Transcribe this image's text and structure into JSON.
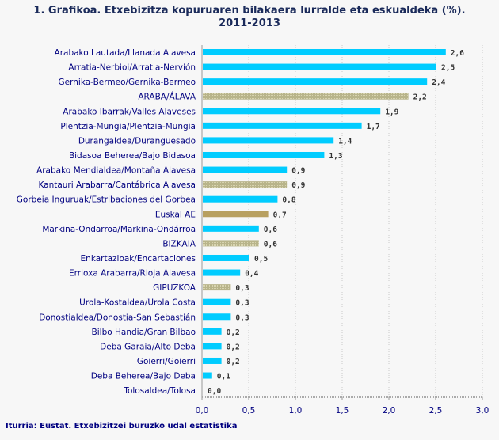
{
  "chart_data": {
    "type": "bar",
    "orientation": "horizontal",
    "title": "1. Grafikoa. Etxebizitza kopuruaren bilakaera lurralde eta eskualdeka (%).",
    "subtitle": "2011-2013",
    "categories": [
      "Arabako Lautada/Llanada Alavesa",
      "Arratia-Nerbioi/Arratia-Nervión",
      "Gernika-Bermeo/Gernika-Bermeo",
      "ARABA/ÁLAVA",
      "Arabako Ibarrak/Valles Alaveses",
      "Plentzia-Mungia/Plentzia-Mungia",
      "Durangaldea/Duranguesado",
      "Bidasoa Beherea/Bajo Bidasoa",
      "Arabako Mendialdea/Montaña Alavesa",
      "Kantauri Arabarra/Cantábrica Alavesa",
      "Gorbeia Inguruak/Estribaciones del Gorbea",
      "Euskal AE",
      "Markina-Ondarroa/Markina-Ondárroa",
      "BIZKAIA",
      "Enkartazioak/Encartaciones",
      "Errioxa Arabarra/Rioja Alavesa",
      "GIPUZKOA",
      "Urola-Kostaldea/Urola Costa",
      "Donostialdea/Donostia-San Sebastián",
      "Bilbo Handia/Gran Bilbao",
      "Deba Garaia/Alto Deba",
      "Goierri/Goierri",
      "Deba Beherea/Bajo Deba",
      "Tolosaldea/Tolosa"
    ],
    "values": [
      2.6,
      2.5,
      2.4,
      2.2,
      1.9,
      1.7,
      1.4,
      1.3,
      0.9,
      0.9,
      0.8,
      0.7,
      0.6,
      0.6,
      0.5,
      0.4,
      0.3,
      0.3,
      0.3,
      0.2,
      0.2,
      0.2,
      0.1,
      0.0
    ],
    "value_labels": [
      "2,6",
      "2,5",
      "2,4",
      "2,2",
      "1,9",
      "1,7",
      "1,4",
      "1,3",
      "0,9",
      "0,9",
      "0,8",
      "0,7",
      "0,6",
      "0,6",
      "0,5",
      "0,4",
      "0,3",
      "0,3",
      "0,3",
      "0,2",
      "0,2",
      "0,2",
      "0,1",
      "0,0"
    ],
    "bar_kind": [
      "region",
      "region",
      "region",
      "province",
      "region",
      "region",
      "region",
      "region",
      "region",
      "province",
      "region",
      "total",
      "region",
      "province",
      "region",
      "region",
      "province",
      "region",
      "region",
      "region",
      "region",
      "region",
      "region",
      "region"
    ],
    "colors": {
      "region": "#00ccff",
      "province": "#b8b48a",
      "total": "#b8a060"
    },
    "xlim": [
      0,
      3.0
    ],
    "xticks": [
      "0,0",
      "0,5",
      "1,0",
      "1,5",
      "2,0",
      "2,5",
      "3,0"
    ],
    "grid": "vertical dotted",
    "xlabel": "",
    "ylabel": ""
  },
  "source": "Iturria: Eustat. Etxebizitzei buruzko udal estatistika"
}
